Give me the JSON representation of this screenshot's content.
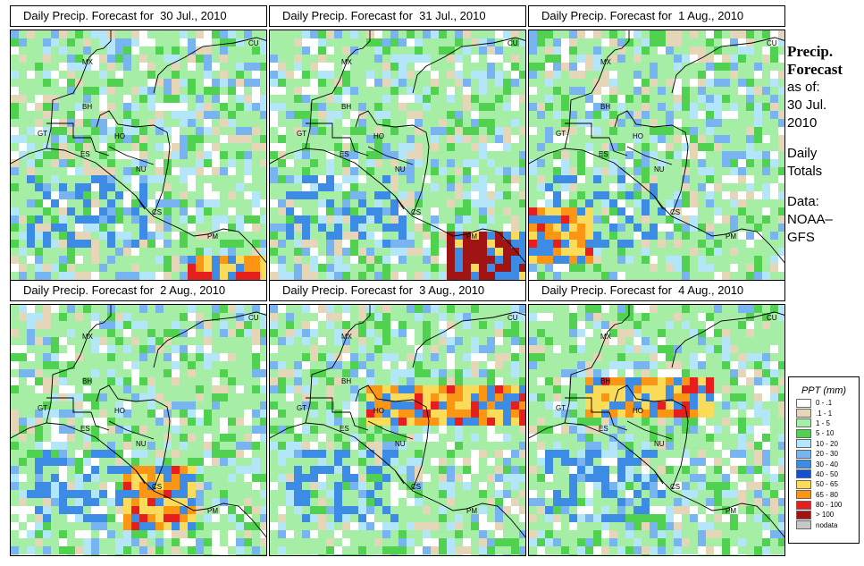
{
  "panels": [
    {
      "title": "Daily Precip. Forecast for  30 Jul., 2010",
      "focus": "se"
    },
    {
      "title": "Daily Precip. Forecast for  31 Jul., 2010",
      "focus": "se2"
    },
    {
      "title": "Daily Precip. Forecast for  1 Aug., 2010",
      "focus": "sw"
    },
    {
      "title": "Daily Precip. Forecast for  2 Aug., 2010",
      "focus": "costa"
    },
    {
      "title": "Daily Precip. Forecast for  3 Aug., 2010",
      "focus": "band"
    },
    {
      "title": "Daily Precip. Forecast for  4 Aug., 2010",
      "focus": "belize"
    }
  ],
  "country_labels": [
    "MX",
    "CU",
    "BH",
    "GT",
    "HO",
    "ES",
    "NU",
    "CS",
    "PM"
  ],
  "sidebar": {
    "title_line1": "Precip.",
    "title_line2": "Forecast",
    "asof_line1": "as of:",
    "asof_line2": "30 Jul.",
    "asof_line3": "2010",
    "totals_line1": "Daily",
    "totals_line2": "Totals",
    "data_line1": "Data:",
    "data_line2": "NOAA–",
    "data_line3": "GFS"
  },
  "legend": {
    "title": "PPT (mm)",
    "items": [
      {
        "label": "0 - .1",
        "color": "#ffffff"
      },
      {
        "label": ".1 - 1",
        "color": "#e6d6b8"
      },
      {
        "label": "1 - 5",
        "color": "#a6eea6"
      },
      {
        "label": "5 - 10",
        "color": "#50d250"
      },
      {
        "label": "10 - 20",
        "color": "#b4e6fa"
      },
      {
        "label": "20 - 30",
        "color": "#78b4f0"
      },
      {
        "label": "30 - 40",
        "color": "#3c8ce6"
      },
      {
        "label": "40 - 50",
        "color": "#1450d2"
      },
      {
        "label": "50 - 65",
        "color": "#fadc5a"
      },
      {
        "label": "65 - 80",
        "color": "#fa9614"
      },
      {
        "label": "80 - 100",
        "color": "#e61e1e"
      },
      {
        "label": "> 100",
        "color": "#a01414"
      },
      {
        "label": "nodata",
        "color": "#c8c8c8"
      }
    ]
  }
}
